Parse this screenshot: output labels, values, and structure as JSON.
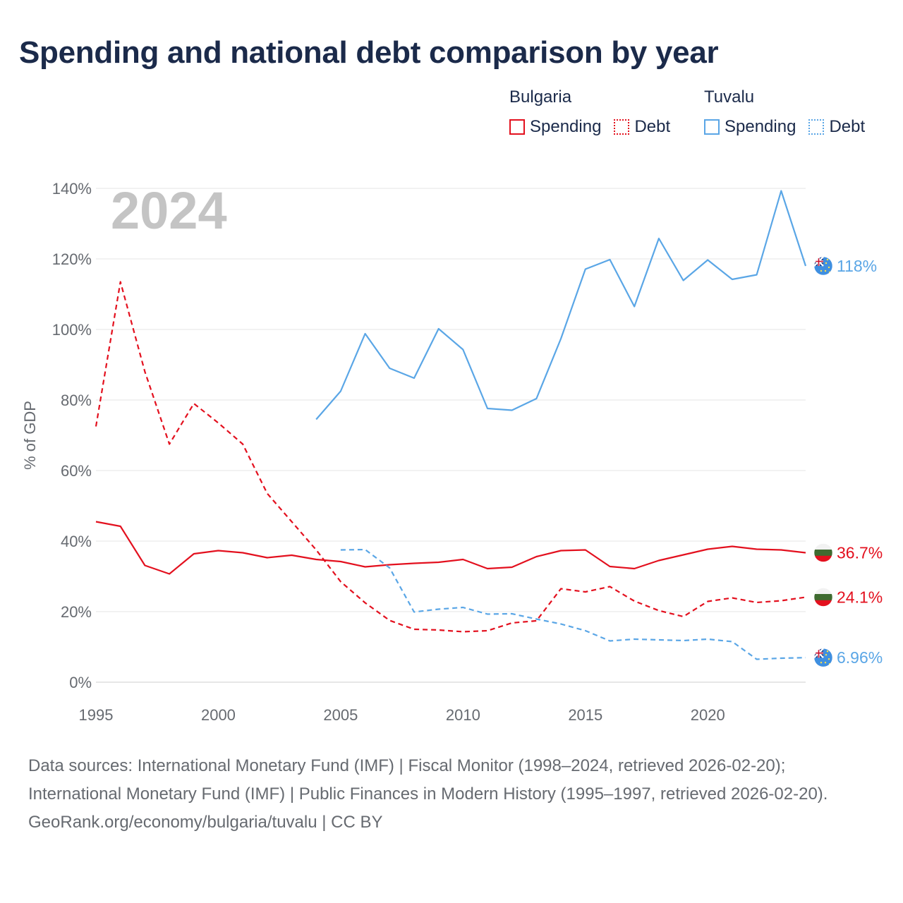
{
  "title": "Spending and national debt comparison by year",
  "year_label": "2024",
  "legend": {
    "groups": [
      {
        "name": "Bulgaria",
        "color": "#e3101e",
        "items": [
          {
            "label": "Spending",
            "style": "solid"
          },
          {
            "label": "Debt",
            "style": "dotted"
          }
        ]
      },
      {
        "name": "Tuvalu",
        "color": "#5aa6e6",
        "items": [
          {
            "label": "Spending",
            "style": "solid"
          },
          {
            "label": "Debt",
            "style": "dotted"
          }
        ]
      }
    ]
  },
  "footer": {
    "sources": "Data sources: International Monetary Fund (IMF) | Fiscal Monitor (1998–2024, retrieved 2026-02-20); International Monetary Fund (IMF) | Public Finances in Modern History (1995–1997, retrieved 2026-02-20).",
    "credit": "GeoRank.org/economy/bulgaria/tuvalu | CC BY"
  },
  "chart_data": {
    "type": "line",
    "title": "Spending and national debt comparison by year",
    "xlabel": "",
    "ylabel": "% of GDP",
    "xlim": [
      1995,
      2024
    ],
    "ylim": [
      0,
      140
    ],
    "x_ticks": [
      1995,
      2000,
      2005,
      2010,
      2015,
      2020
    ],
    "x_tick_labels": [
      "1995",
      "2000",
      "2005",
      "2010",
      "2015",
      "2020"
    ],
    "y_ticks": [
      0,
      20,
      40,
      60,
      80,
      100,
      120,
      140
    ],
    "y_tick_labels": [
      "0%",
      "20%",
      "40%",
      "60%",
      "80%",
      "100%",
      "120%",
      "140%"
    ],
    "grid": true,
    "legend_position": "top-right",
    "series": [
      {
        "name": "Bulgaria Spending",
        "country": "Bulgaria",
        "color": "#e3101e",
        "dashed": false,
        "end_label": "36.7%",
        "flag": "bulgaria",
        "x": [
          1995,
          1996,
          1997,
          1998,
          1999,
          2000,
          2001,
          2002,
          2003,
          2004,
          2005,
          2006,
          2007,
          2008,
          2009,
          2010,
          2011,
          2012,
          2013,
          2014,
          2015,
          2016,
          2017,
          2018,
          2019,
          2020,
          2021,
          2022,
          2023,
          2024
        ],
        "values": [
          45.5,
          44.2,
          33.1,
          30.7,
          36.4,
          37.3,
          36.7,
          35.3,
          36.0,
          34.8,
          34.2,
          32.7,
          33.3,
          33.7,
          34.0,
          34.8,
          32.2,
          32.6,
          35.6,
          37.3,
          37.5,
          32.8,
          32.2,
          34.5,
          36.1,
          37.7,
          38.5,
          37.7,
          37.5,
          36.7
        ]
      },
      {
        "name": "Bulgaria Debt",
        "country": "Bulgaria",
        "color": "#e3101e",
        "dashed": true,
        "end_label": "24.1%",
        "flag": "bulgaria",
        "x": [
          1995,
          1996,
          1997,
          1998,
          1999,
          2000,
          2001,
          2002,
          2003,
          2004,
          2005,
          2006,
          2007,
          2008,
          2009,
          2010,
          2011,
          2012,
          2013,
          2014,
          2015,
          2016,
          2017,
          2018,
          2019,
          2020,
          2021,
          2022,
          2023,
          2024
        ],
        "values": [
          72.5,
          113.5,
          88.0,
          67.5,
          79.0,
          73.5,
          67.5,
          53.5,
          45.5,
          37.5,
          28.5,
          22.5,
          17.5,
          15.0,
          14.8,
          14.3,
          14.6,
          16.8,
          17.4,
          26.5,
          25.6,
          27.1,
          23.0,
          20.3,
          18.6,
          22.9,
          23.9,
          22.6,
          23.1,
          24.1
        ]
      },
      {
        "name": "Tuvalu Spending",
        "country": "Tuvalu",
        "color": "#5aa6e6",
        "dashed": false,
        "end_label": "118%",
        "flag": "tuvalu",
        "x": [
          2004,
          2005,
          2006,
          2007,
          2008,
          2009,
          2010,
          2011,
          2012,
          2013,
          2014,
          2015,
          2016,
          2017,
          2018,
          2019,
          2020,
          2021,
          2022,
          2023,
          2024
        ],
        "values": [
          74.5,
          82.5,
          98.8,
          89.0,
          86.2,
          100.2,
          94.3,
          77.6,
          77.1,
          80.4,
          97.4,
          117.1,
          119.8,
          106.5,
          125.8,
          113.9,
          119.7,
          114.2,
          115.5,
          139.3,
          118.0
        ]
      },
      {
        "name": "Tuvalu Debt",
        "country": "Tuvalu",
        "color": "#5aa6e6",
        "dashed": true,
        "end_label": "6.96%",
        "flag": "tuvalu",
        "x": [
          2005,
          2006,
          2007,
          2008,
          2009,
          2010,
          2011,
          2012,
          2013,
          2014,
          2015,
          2016,
          2017,
          2018,
          2019,
          2020,
          2021,
          2022,
          2023,
          2024
        ],
        "values": [
          37.5,
          37.6,
          32.4,
          19.9,
          20.7,
          21.2,
          19.3,
          19.4,
          17.9,
          16.5,
          14.6,
          11.7,
          12.2,
          12.0,
          11.8,
          12.2,
          11.5,
          6.5,
          6.8,
          6.96
        ]
      }
    ]
  }
}
